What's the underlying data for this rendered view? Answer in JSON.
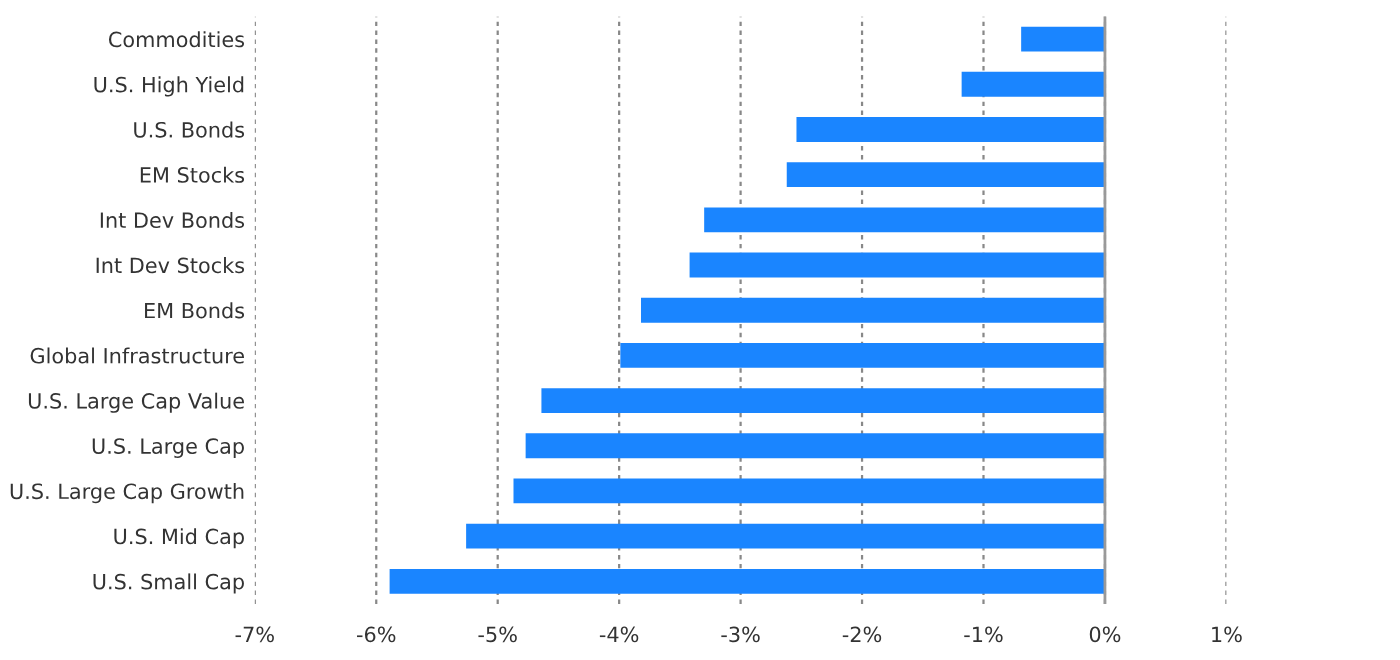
{
  "chart_data": {
    "type": "bar",
    "orientation": "horizontal",
    "categories": [
      "Commodities",
      "U.S. High Yield",
      "U.S. Bonds",
      "EM Stocks",
      "Int Dev Bonds",
      "Int Dev Stocks",
      "EM Bonds",
      "Global Infrastructure",
      "U.S. Large Cap Value",
      "U.S. Large Cap",
      "U.S. Large Cap Growth",
      "U.S. Mid Cap",
      "U.S. Small Cap"
    ],
    "values": [
      -0.69,
      -1.18,
      -2.54,
      -2.62,
      -3.3,
      -3.42,
      -3.82,
      -3.99,
      -4.64,
      -4.77,
      -4.87,
      -5.26,
      -5.89
    ],
    "color": "#1a85ff",
    "xlim": [
      -7,
      1
    ],
    "xticks": [
      {
        "value": -7,
        "label": "-7%"
      },
      {
        "value": -6,
        "label": "-6%"
      },
      {
        "value": -5,
        "label": "-5%"
      },
      {
        "value": -4,
        "label": "-4%"
      },
      {
        "value": -3,
        "label": "-3%"
      },
      {
        "value": -2,
        "label": "-2%"
      },
      {
        "value": -1,
        "label": "-1%"
      },
      {
        "value": 0,
        "label": "0%"
      },
      {
        "value": 1,
        "label": "1%"
      }
    ],
    "grid": "x",
    "ref_lines": [
      {
        "axis": "x",
        "value": 0,
        "color": "#999999",
        "line_style": "solid"
      }
    ]
  }
}
